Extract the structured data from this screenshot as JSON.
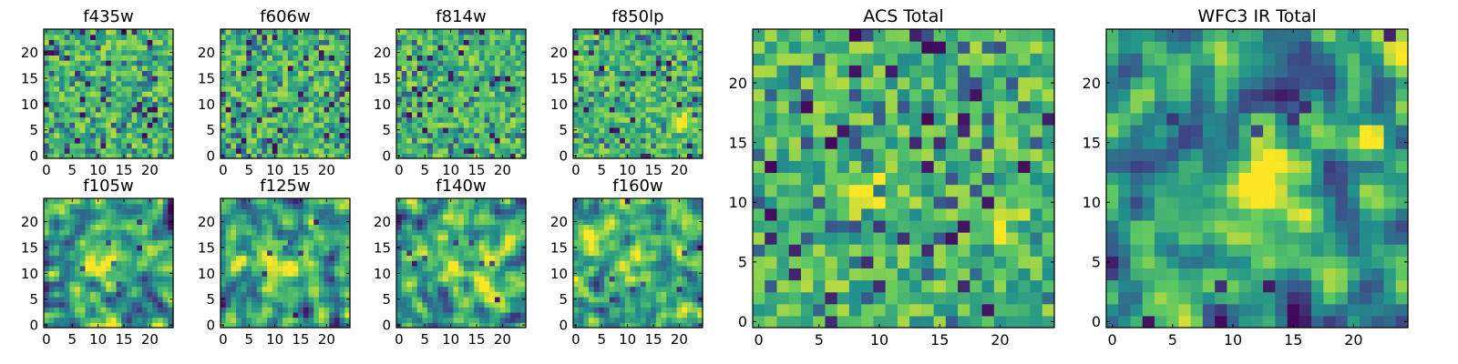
{
  "figure": {
    "kind": "grid of pixel-intensity heatmaps (viridis colormap)",
    "colormap": [
      "#440154",
      "#3b528b",
      "#21918c",
      "#5ec962",
      "#fde725"
    ]
  },
  "chart_data": [
    {
      "type": "heatmap",
      "id": "f435w",
      "title": "f435w",
      "xlim": [
        0,
        25
      ],
      "ylim": [
        0,
        25
      ],
      "xticks": [
        0,
        5,
        10,
        15,
        20
      ],
      "yticks": [
        0,
        5,
        10,
        15,
        20
      ],
      "grid_size": [
        25,
        25
      ],
      "seed": 11,
      "texture": "pixel",
      "blobs": []
    },
    {
      "type": "heatmap",
      "id": "f606w",
      "title": "f606w",
      "xlim": [
        0,
        25
      ],
      "ylim": [
        0,
        25
      ],
      "xticks": [
        0,
        5,
        10,
        15,
        20
      ],
      "yticks": [
        0,
        5,
        10,
        15,
        20
      ],
      "grid_size": [
        25,
        25
      ],
      "seed": 23,
      "texture": "pixel",
      "blobs": []
    },
    {
      "type": "heatmap",
      "id": "f814w",
      "title": "f814w",
      "xlim": [
        0,
        25
      ],
      "ylim": [
        0,
        25
      ],
      "xticks": [
        0,
        5,
        10,
        15,
        20
      ],
      "yticks": [
        0,
        5,
        10,
        15,
        20
      ],
      "grid_size": [
        25,
        25
      ],
      "seed": 37,
      "texture": "pixel",
      "blobs": []
    },
    {
      "type": "heatmap",
      "id": "f850lp",
      "title": "f850lp",
      "xlim": [
        0,
        25
      ],
      "ylim": [
        0,
        25
      ],
      "xticks": [
        0,
        5,
        10,
        15,
        20
      ],
      "yticks": [
        0,
        5,
        10,
        15,
        20
      ],
      "grid_size": [
        25,
        25
      ],
      "seed": 41,
      "texture": "pixel",
      "blobs": [
        {
          "x": 21,
          "y": 7,
          "sigma": 1.5,
          "amp": 0.35
        }
      ]
    },
    {
      "type": "heatmap",
      "id": "f105w",
      "title": "f105w",
      "xlim": [
        0,
        25
      ],
      "ylim": [
        0,
        25
      ],
      "xticks": [
        0,
        5,
        10,
        15,
        20
      ],
      "yticks": [
        0,
        5,
        10,
        15,
        20
      ],
      "grid_size": [
        25,
        25
      ],
      "seed": 53,
      "texture": "smooth",
      "blobs": [
        {
          "x": 11,
          "y": 12,
          "sigma": 4,
          "amp": 0.25
        }
      ]
    },
    {
      "type": "heatmap",
      "id": "f125w",
      "title": "f125w",
      "xlim": [
        0,
        25
      ],
      "ylim": [
        0,
        25
      ],
      "xticks": [
        0,
        5,
        10,
        15,
        20
      ],
      "yticks": [
        0,
        5,
        10,
        15,
        20
      ],
      "grid_size": [
        25,
        25
      ],
      "seed": 67,
      "texture": "smooth",
      "blobs": [
        {
          "x": 11,
          "y": 12,
          "sigma": 4,
          "amp": 0.2
        }
      ]
    },
    {
      "type": "heatmap",
      "id": "f140w",
      "title": "f140w",
      "xlim": [
        0,
        25
      ],
      "ylim": [
        0,
        25
      ],
      "xticks": [
        0,
        5,
        10,
        15,
        20
      ],
      "yticks": [
        0,
        5,
        10,
        15,
        20
      ],
      "grid_size": [
        25,
        25
      ],
      "seed": 79,
      "texture": "smooth",
      "blobs": [
        {
          "x": 12,
          "y": 11,
          "sigma": 5,
          "amp": 0.25
        }
      ]
    },
    {
      "type": "heatmap",
      "id": "f160w",
      "title": "f160w",
      "xlim": [
        0,
        25
      ],
      "ylim": [
        0,
        25
      ],
      "xticks": [
        0,
        5,
        10,
        15,
        20
      ],
      "yticks": [
        0,
        5,
        10,
        15,
        20
      ],
      "grid_size": [
        25,
        25
      ],
      "seed": 83,
      "texture": "smooth",
      "blobs": [
        {
          "x": 13,
          "y": 12,
          "sigma": 4,
          "amp": 0.25
        }
      ]
    },
    {
      "type": "heatmap",
      "id": "acs-total",
      "title": "ACS Total",
      "xlim": [
        0,
        25
      ],
      "ylim": [
        0,
        25
      ],
      "xticks": [
        0,
        5,
        10,
        15,
        20
      ],
      "yticks": [
        0,
        5,
        10,
        15,
        20
      ],
      "grid_size": [
        25,
        25
      ],
      "seed": 97,
      "texture": "pixel",
      "blobs": [
        {
          "x": 20.5,
          "y": 7.5,
          "sigma": 1.2,
          "amp": 0.45
        },
        {
          "x": 9.5,
          "y": 11,
          "sigma": 1.5,
          "amp": 0.25
        }
      ]
    },
    {
      "type": "heatmap",
      "id": "wfc3-ir-total",
      "title": "WFC3 IR Total",
      "xlim": [
        0,
        25
      ],
      "ylim": [
        0,
        25
      ],
      "xticks": [
        0,
        5,
        10,
        15,
        20
      ],
      "yticks": [
        0,
        5,
        10,
        15,
        20
      ],
      "grid_size": [
        25,
        25
      ],
      "seed": 101,
      "texture": "smooth",
      "blobs": [
        {
          "x": 12.5,
          "y": 12,
          "sigma": 3.5,
          "amp": 0.3
        },
        {
          "x": 21.5,
          "y": 15.5,
          "sigma": 0.9,
          "amp": 0.4
        },
        {
          "x": 5,
          "y": 9.5,
          "sigma": 0.9,
          "amp": 0.25
        }
      ]
    }
  ]
}
